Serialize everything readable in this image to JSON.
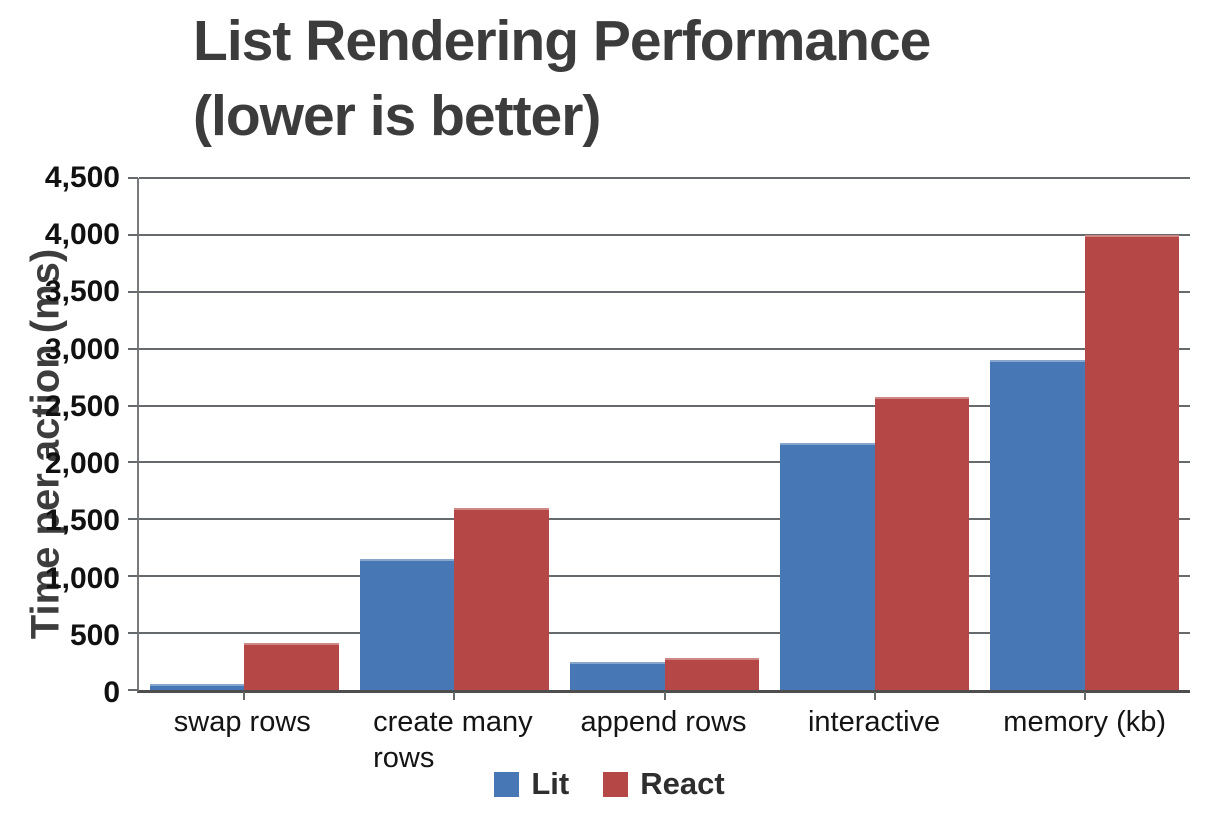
{
  "title": {
    "lines": [
      "List Rendering Performance",
      "(lower is better)"
    ]
  },
  "y_axis": {
    "title": "Time per action (ms)",
    "tick_labels": [
      "4,500",
      "4,000",
      "3,500",
      "3,000",
      "2,500",
      "2,000",
      "1,500",
      "1,000",
      "500",
      "0"
    ],
    "min": 0,
    "max": 4500,
    "step": 500
  },
  "x_axis": {
    "category_label_lines": [
      [
        "swap rows"
      ],
      [
        "create many",
        "rows"
      ],
      [
        "append rows"
      ],
      [
        "interactive"
      ],
      [
        "memory (kb)"
      ]
    ]
  },
  "legend": {
    "items": [
      {
        "label": "Lit",
        "color": "#4777B4"
      },
      {
        "label": "React",
        "color": "#B54846"
      }
    ]
  },
  "colors": {
    "lit": "#4777B4",
    "react": "#B54846",
    "gridline": "#666a6d",
    "title_text": "#3c3c3c"
  },
  "chart_data": {
    "type": "bar",
    "title": "List Rendering Performance (lower is better)",
    "categories": [
      "swap rows",
      "create many rows",
      "append rows",
      "interactive",
      "memory (kb)"
    ],
    "series": [
      {
        "name": "Lit",
        "color": "#4777B4",
        "values": [
          55,
          1150,
          250,
          2175,
          2900
        ]
      },
      {
        "name": "React",
        "color": "#B54846",
        "values": [
          415,
          1600,
          285,
          2575,
          4000
        ]
      }
    ],
    "xlabel": "",
    "ylabel": "Time per action (ms)",
    "ylim": [
      0,
      4500
    ],
    "ytick_step": 500,
    "grid": true,
    "legend_position": "bottom"
  }
}
